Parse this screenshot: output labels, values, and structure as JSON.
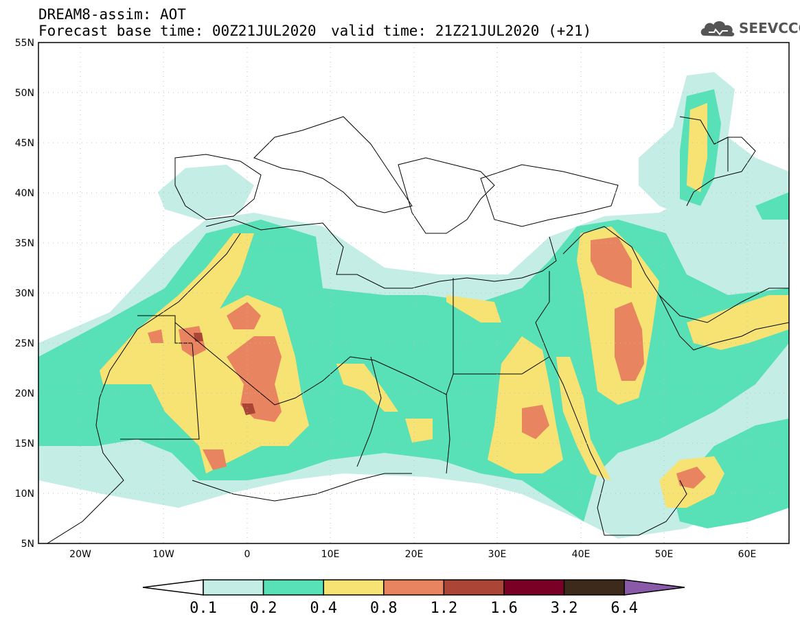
{
  "header": {
    "title_line1": "DREAM8-assim: AOT",
    "title_base": "Forecast base time: 00Z21JUL2020",
    "title_valid": "valid time: 21Z21JUL2020 (+21)",
    "logo_text": "SEEVCCC",
    "logo_icon": "cloud-icon"
  },
  "map": {
    "lon_range": [
      -25,
      65
    ],
    "lat_range": [
      5,
      55
    ],
    "lat_labels": [
      "55N",
      "50N",
      "45N",
      "40N",
      "35N",
      "30N",
      "25N",
      "20N",
      "15N",
      "10N",
      "5N"
    ],
    "lon_labels": [
      "20W",
      "10W",
      "0",
      "10E",
      "20E",
      "30E",
      "40E",
      "50E",
      "60E"
    ]
  },
  "colorbar": {
    "labels": [
      "0.1",
      "0.2",
      "0.4",
      "0.8",
      "1.2",
      "1.6",
      "3.2",
      "6.4"
    ],
    "colors": {
      "below": "#ffffff",
      "b1": "#c4ede5",
      "b2": "#58e0b7",
      "b3": "#f6e373",
      "b4": "#e8845f",
      "b5": "#ab4636",
      "b6": "#7a0026",
      "b7": "#3d2a1a",
      "above": "#8a5aa8"
    }
  }
}
